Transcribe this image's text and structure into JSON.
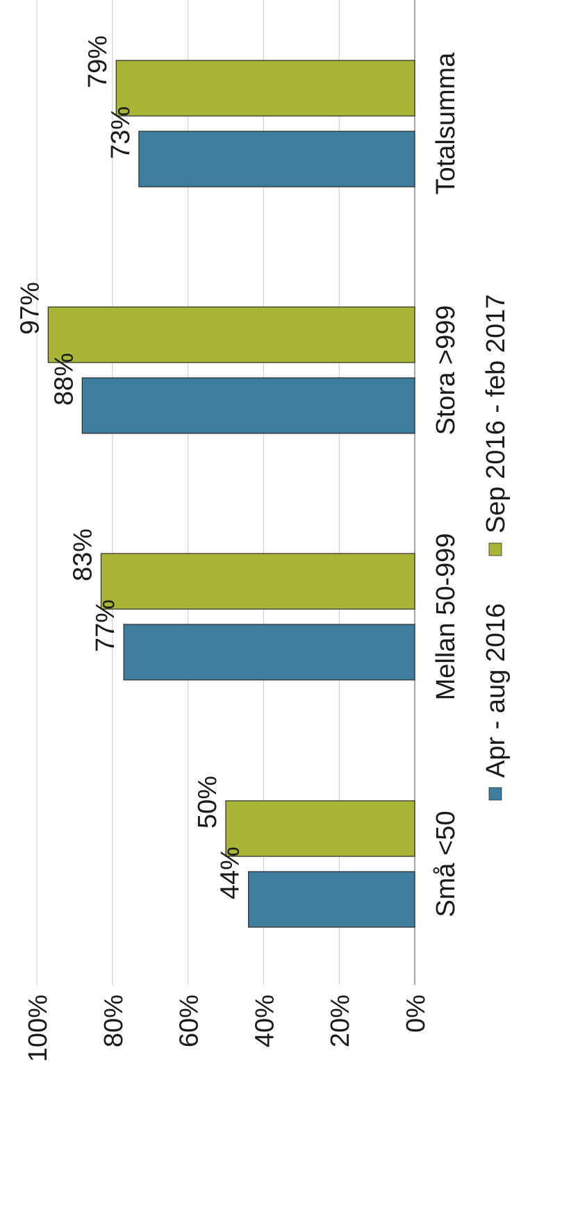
{
  "chart_data": {
    "type": "bar",
    "orientation": "vertical, page rotated 90° counter-clockwise",
    "title": "",
    "xlabel": "",
    "ylabel": "",
    "categories": [
      "Små <50",
      "Mellan 50-999",
      "Stora >999",
      "Totalsumma"
    ],
    "series": [
      {
        "name": "Apr - aug 2016",
        "values": [
          44,
          77,
          88,
          73
        ],
        "labels": [
          "44%",
          "77%",
          "88%",
          "73%"
        ],
        "color": "#3f7d9c"
      },
      {
        "name": "Sep 2016 - feb 2017",
        "values": [
          50,
          83,
          97,
          79
        ],
        "labels": [
          "50%",
          "83%",
          "97%",
          "79%"
        ],
        "color": "#a9b537"
      }
    ],
    "ylim": [
      0,
      100
    ],
    "yticks": [
      "0%",
      "20%",
      "40%",
      "60%",
      "80%",
      "100%"
    ],
    "grid": true,
    "legend": "bottom"
  }
}
